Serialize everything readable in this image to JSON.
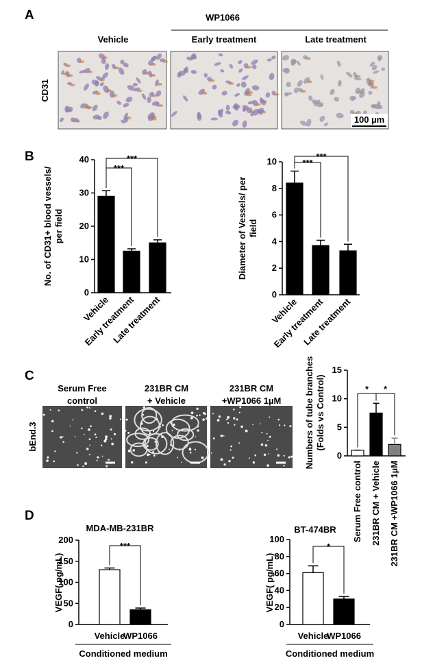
{
  "figure": {
    "panel_labels": [
      "A",
      "B",
      "C",
      "D"
    ],
    "panel_a": {
      "group": "WP1066",
      "columns": [
        "Vehicle",
        "Early treatment",
        "Late treatment"
      ],
      "row": "CD31",
      "scale_bar": "100 µm"
    },
    "panel_c": {
      "columns": [
        [
          "Serum Free",
          "control"
        ],
        [
          "231BR CM",
          "+ Vehicle"
        ],
        [
          "231BR CM",
          "+WP1066 1µM"
        ]
      ],
      "row": "bEnd.3"
    }
  },
  "chart_data": [
    {
      "type": "bar",
      "ylabel": [
        "No. of CD31+ blood vessels/",
        "per field"
      ],
      "categories": [
        "Vehicle",
        "Early treatment",
        "Late treatment"
      ],
      "values": [
        29,
        12.5,
        15
      ],
      "errors": [
        1.7,
        0.7,
        0.9
      ],
      "colors": [
        "#000000",
        "#000000",
        "#000000"
      ],
      "ylim": [
        0,
        40
      ],
      "yticks": [
        0,
        10,
        20,
        30,
        40
      ],
      "significance": [
        "***",
        "***"
      ]
    },
    {
      "type": "bar",
      "ylabel": [
        "Diameter of Vessels/ per",
        "field"
      ],
      "categories": [
        "Vehicle",
        "Early treatment",
        "Late treatment"
      ],
      "values": [
        8.4,
        3.7,
        3.3
      ],
      "errors": [
        0.9,
        0.4,
        0.5
      ],
      "colors": [
        "#000000",
        "#000000",
        "#000000"
      ],
      "ylim": [
        0,
        10
      ],
      "yticks": [
        0,
        2,
        4,
        6,
        8,
        10
      ],
      "significance": [
        "***",
        "***"
      ]
    },
    {
      "type": "bar",
      "ylabel": [
        "Numbers of tube branches",
        "(Folds vs Control)"
      ],
      "categories": [
        "Serum Free control",
        "231BR CM + Vehicle",
        "231BR CM +WP1066 1µM"
      ],
      "values": [
        1,
        7.5,
        2
      ],
      "errors": [
        0,
        1.7,
        1.1
      ],
      "colors": [
        "#ffffff",
        "#000000",
        "#808080"
      ],
      "ylim": [
        0,
        15
      ],
      "yticks": [
        0,
        5,
        10,
        15
      ],
      "significance": [
        "*",
        "*"
      ]
    },
    {
      "type": "bar",
      "title": "MDA-MB-231BR",
      "ylabel": [
        "VEGF( pg/mL)"
      ],
      "categories": [
        "Vehicle",
        "WP1066"
      ],
      "xlabel": "Conditioned medium",
      "values": [
        130,
        35
      ],
      "errors": [
        4,
        4
      ],
      "colors": [
        "#ffffff",
        "#000000"
      ],
      "ylim": [
        0,
        200
      ],
      "yticks": [
        0,
        50,
        100,
        150,
        200
      ],
      "significance": [
        "***"
      ]
    },
    {
      "type": "bar",
      "title": "BT-474BR",
      "ylabel": [
        "VEGF( pg/mL)"
      ],
      "categories": [
        "Vehicle",
        "WP1066"
      ],
      "xlabel": "Conditioned medium",
      "values": [
        61,
        30
      ],
      "errors": [
        8,
        3
      ],
      "colors": [
        "#ffffff",
        "#000000"
      ],
      "ylim": [
        0,
        100
      ],
      "yticks": [
        0,
        20,
        40,
        60,
        80,
        100
      ],
      "significance": [
        "*"
      ]
    }
  ]
}
